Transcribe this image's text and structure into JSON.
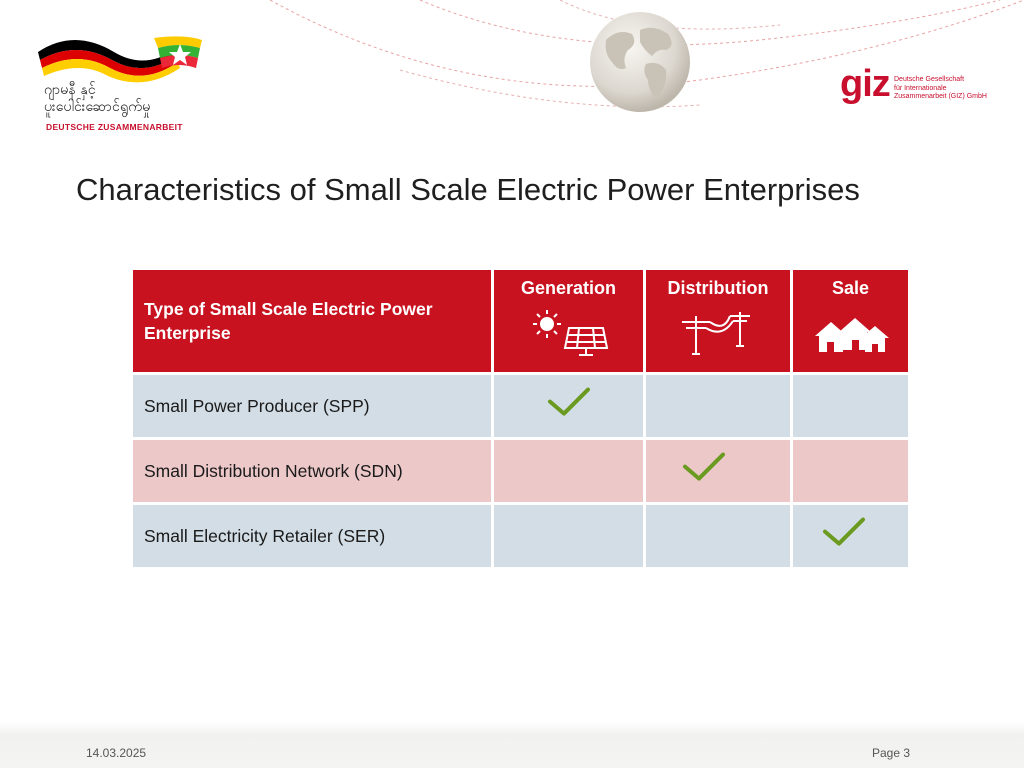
{
  "header": {
    "logo_left": {
      "burmese_line1": "ဂျာမနီ နှင့်",
      "burmese_line2": "ပူးပေါင်းဆောင်ရွက်မှု",
      "subtitle": "DEUTSCHE ZUSAMMENARBEIT"
    },
    "giz": {
      "word": "giz",
      "line1": "Deutsche Gesellschaft",
      "line2": "für Internationale",
      "line3": "Zusammenarbeit (GIZ) GmbH"
    }
  },
  "slide": {
    "title": "Characteristics of Small Scale Electric Power Enterprises"
  },
  "table": {
    "header": {
      "type_label": "Type of Small Scale Electric Power Enterprise",
      "columns": [
        {
          "label": "Generation",
          "icon": "solar-panel-icon"
        },
        {
          "label": "Distribution",
          "icon": "power-line-icon"
        },
        {
          "label": "Sale",
          "icon": "houses-icon"
        }
      ]
    },
    "rows": [
      {
        "label": "Small Power Producer (SPP)",
        "checks": [
          true,
          false,
          false
        ]
      },
      {
        "label": "Small Distribution Network (SDN)",
        "checks": [
          false,
          true,
          false
        ]
      },
      {
        "label": "Small Electricity Retailer (SER)",
        "checks": [
          false,
          false,
          true
        ]
      }
    ]
  },
  "colors": {
    "header_red": "#c8121f",
    "row_blue": "#d3dde5",
    "row_pink": "#ecc8c9",
    "check_green": "#6a9a1f",
    "brand_red": "#c8102e"
  },
  "footer": {
    "date": "14.03.2025",
    "page": "Page 3"
  }
}
